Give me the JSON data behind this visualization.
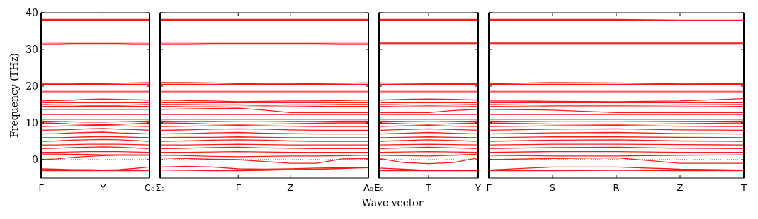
{
  "chart_data": [
    {
      "type": "line",
      "ylabel": "Frequency (THz)",
      "color": "#ff0000",
      "categories": [
        "Γ",
        null,
        null,
        null,
        "Y",
        null,
        null,
        "C₀"
      ],
      "ylim": [
        -5,
        40
      ],
      "yticks": [
        0,
        10,
        20,
        30,
        40
      ],
      "ref_lines": [
        {
          "axis": "y",
          "value": 0,
          "color": "#0000ff",
          "line_style": "dotted"
        }
      ],
      "series": [
        {
          "values": [
            38.2,
            38.2,
            38.2,
            38.2,
            38.2,
            38.2,
            38.2,
            38.2
          ]
        },
        {
          "values": [
            37.8,
            37.8,
            37.8,
            37.8,
            37.8,
            37.8,
            37.8,
            37.8
          ]
        },
        {
          "values": [
            32,
            32,
            32,
            32,
            32,
            32,
            32,
            32
          ]
        },
        {
          "values": [
            31.5,
            31.5,
            31.6,
            31.6,
            31.6,
            31.6,
            31.5,
            31.5
          ]
        },
        {
          "values": [
            20.6,
            20.6,
            20.6,
            20.7,
            20.7,
            20.8,
            20.9,
            21
          ]
        },
        {
          "values": [
            20.5,
            20.5,
            20.5,
            20.5,
            20.5,
            20.5,
            20.5,
            20.5
          ]
        },
        {
          "values": [
            18.9,
            18.9,
            18.9,
            18.9,
            18.9,
            18.9,
            18.9,
            18.9
          ]
        },
        {
          "values": [
            18.5,
            18.5,
            18.5,
            18.5,
            18.5,
            18.5,
            18.5,
            18.5
          ]
        },
        {
          "values": [
            16,
            16.1,
            16.2,
            16.4,
            16.5,
            16.4,
            16.3,
            16.2
          ]
        },
        {
          "values": [
            15.5,
            15.5,
            15.5,
            15.5,
            15.5,
            15.5,
            15.5,
            15.5
          ]
        },
        {
          "values": [
            15,
            14.9,
            14.9,
            14.8,
            14.8,
            14.8,
            14.9,
            15
          ]
        },
        {
          "values": [
            14.5,
            14.5,
            14.5,
            14.5,
            14.5,
            14.5,
            14.5,
            14.5
          ]
        },
        {
          "values": [
            13.7,
            13.7,
            13.7,
            13.7,
            13.7,
            13.7,
            13.7,
            13.7
          ]
        },
        {
          "values": [
            12.3,
            12.3,
            12.3,
            12.3,
            12.3,
            12.3,
            12.3,
            12.3
          ]
        },
        {
          "values": [
            11,
            11,
            11,
            11,
            11,
            11,
            11,
            11
          ]
        },
        {
          "values": [
            10.5,
            10.4,
            10.3,
            10.2,
            10.2,
            10.3,
            10.4,
            10.5
          ]
        },
        {
          "values": [
            10,
            9.9,
            9.7,
            9.6,
            9.5,
            9.6,
            9.8,
            10
          ]
        },
        {
          "values": [
            9,
            9.1,
            9.2,
            9.3,
            9.3,
            9.2,
            9.1,
            9
          ]
        },
        {
          "values": [
            8,
            8.1,
            8.2,
            8.4,
            8.5,
            8.3,
            8.2,
            8
          ]
        },
        {
          "values": [
            7,
            7.1,
            7.3,
            7.4,
            7.5,
            7.3,
            7.2,
            7
          ]
        },
        {
          "values": [
            6,
            6,
            6.1,
            6.2,
            6.3,
            6.2,
            6.1,
            6
          ]
        },
        {
          "values": [
            5,
            5.1,
            5.3,
            5.4,
            5.5,
            5.4,
            5.2,
            5
          ]
        },
        {
          "values": [
            4,
            4,
            4.1,
            4.2,
            4.2,
            4.2,
            4.1,
            4
          ]
        },
        {
          "values": [
            3,
            3.1,
            3.3,
            3.4,
            3.5,
            3.4,
            3.2,
            3
          ]
        },
        {
          "values": [
            2,
            2,
            2.1,
            2.2,
            2.2,
            2.2,
            2.1,
            2
          ]
        },
        {
          "values": [
            1.5,
            1.5,
            1.4,
            1.4,
            1.3,
            1.3,
            1.3,
            1.2
          ]
        },
        {
          "values": [
            0,
            0.2,
            0.6,
            0.9,
            1.1,
            1.2,
            1.2,
            1.3
          ]
        },
        {
          "values": [
            -2.5,
            -2.6,
            -2.7,
            -2.7,
            -2.8,
            -2.7,
            -2.4,
            -2
          ]
        },
        {
          "values": [
            -3,
            -3,
            -3,
            -3,
            -3,
            -3,
            -3,
            -3
          ]
        }
      ]
    },
    {
      "type": "line",
      "color": "#ff0000",
      "tick_labels": "x",
      "categories": [
        "Σ₀",
        null,
        null,
        "Γ",
        null,
        "Z",
        null,
        null,
        "A₀"
      ],
      "ylim": [
        -5,
        40
      ],
      "yticks": [
        0,
        10,
        20,
        30,
        40
      ],
      "ref_lines": [
        {
          "axis": "y",
          "value": 0,
          "color": "#0000ff",
          "line_style": "dotted"
        }
      ],
      "series": [
        {
          "values": [
            38.2,
            38.2,
            38.2,
            38.2,
            38.2,
            38.2,
            38.2,
            38.2,
            38.2
          ]
        },
        {
          "values": [
            37.8,
            37.8,
            37.8,
            37.8,
            37.8,
            37.8,
            37.8,
            37.8,
            37.8
          ]
        },
        {
          "values": [
            32,
            32,
            32,
            32,
            32,
            32,
            32,
            32,
            32
          ]
        },
        {
          "values": [
            31.5,
            31.5,
            31.6,
            31.6,
            31.6,
            31.6,
            31.6,
            31.5,
            31.5
          ]
        },
        {
          "values": [
            21,
            21,
            20.9,
            20.7,
            20.6,
            20.6,
            20.7,
            20.8,
            20.9
          ]
        },
        {
          "values": [
            20.5,
            20.5,
            20.5,
            20.5,
            20.5,
            20.5,
            20.5,
            20.5,
            20.5
          ]
        },
        {
          "values": [
            18.9,
            18.9,
            18.9,
            18.9,
            18.9,
            18.9,
            18.9,
            18.9,
            18.9
          ]
        },
        {
          "values": [
            18.5,
            18.5,
            18.5,
            18.5,
            18.5,
            18.5,
            18.5,
            18.5,
            18.5
          ]
        },
        {
          "values": [
            16.2,
            16.1,
            16,
            15.8,
            15.9,
            16,
            16,
            16.1,
            16.2
          ]
        },
        {
          "values": [
            15.5,
            15.5,
            15.5,
            15.5,
            15.5,
            15.5,
            15.5,
            15.5,
            15.5
          ]
        },
        {
          "values": [
            15,
            15,
            14.9,
            14.9,
            14.8,
            14.9,
            14.9,
            15,
            15
          ]
        },
        {
          "values": [
            14.5,
            14.4,
            14.4,
            14.3,
            14.4,
            14.4,
            14.5,
            14.5,
            14.5
          ]
        },
        {
          "values": [
            13.7,
            13.8,
            13.9,
            14,
            13.5,
            12.8,
            12.8,
            12.8,
            12.8
          ]
        },
        {
          "values": [
            12.3,
            12.3,
            12.3,
            12.3,
            12.3,
            12.3,
            12.3,
            12.3,
            12.3
          ]
        },
        {
          "values": [
            11,
            11,
            11,
            11,
            11,
            11,
            11,
            11,
            11
          ]
        },
        {
          "values": [
            10.5,
            10.4,
            10.4,
            10.3,
            10.3,
            10.4,
            10.4,
            10.5,
            10.5
          ]
        },
        {
          "values": [
            10,
            9.9,
            9.7,
            9.6,
            9.7,
            9.8,
            9.9,
            10,
            10
          ]
        },
        {
          "values": [
            9,
            9.1,
            9.2,
            9.3,
            9.2,
            9.1,
            9,
            9,
            9
          ]
        },
        {
          "values": [
            8,
            8.1,
            8.3,
            8.4,
            8.3,
            8.1,
            8,
            8,
            8
          ]
        },
        {
          "values": [
            7,
            7.1,
            7.3,
            7.4,
            7.2,
            7.1,
            7,
            7,
            7
          ]
        },
        {
          "values": [
            6,
            6.1,
            6.1,
            6.2,
            6.1,
            6,
            6,
            6,
            6
          ]
        },
        {
          "values": [
            5,
            5.1,
            5.3,
            5.4,
            5.3,
            5.1,
            5,
            5,
            5
          ]
        },
        {
          "values": [
            4,
            4,
            4.1,
            4.2,
            4.1,
            4,
            4,
            4,
            4
          ]
        },
        {
          "values": [
            3,
            3.1,
            3.3,
            3.4,
            3.2,
            3.1,
            3,
            3,
            3
          ]
        },
        {
          "values": [
            2,
            2,
            2.1,
            2.2,
            2.1,
            2,
            2,
            2,
            2
          ]
        },
        {
          "values": [
            1.2,
            1.1,
            0.9,
            0.8,
            0.9,
            1,
            1,
            1.1,
            1.2
          ]
        },
        {
          "values": [
            0.5,
            0.3,
            0.1,
            0,
            -0.5,
            -1,
            -1,
            0.2,
            0.3
          ]
        },
        {
          "values": [
            -2,
            -1.8,
            -2,
            -2.5,
            -2.6,
            -2.5,
            -2.3,
            -2.2,
            -2.1
          ]
        },
        {
          "values": [
            -2.8,
            -2.9,
            -3,
            -3,
            -2.9,
            -2.7,
            -2.6,
            -2.4,
            -2.2
          ]
        }
      ]
    },
    {
      "type": "line",
      "xlabel": "Wave vector",
      "color": "#ff0000",
      "tick_labels": "x",
      "categories": [
        "E₀",
        null,
        "T",
        null,
        "Y"
      ],
      "ylim": [
        -5,
        40
      ],
      "yticks": [
        0,
        10,
        20,
        30,
        40
      ],
      "ref_lines": [
        {
          "axis": "y",
          "value": 0,
          "color": "#0000ff",
          "line_style": "dotted"
        }
      ],
      "series": [
        {
          "values": [
            38.2,
            38.2,
            38.2,
            38.2,
            38.2
          ]
        },
        {
          "values": [
            37.8,
            37.8,
            37.8,
            37.8,
            37.8
          ]
        },
        {
          "values": [
            31.9,
            31.9,
            31.9,
            31.9,
            31.9
          ]
        },
        {
          "values": [
            31.6,
            31.6,
            31.6,
            31.6,
            31.6
          ]
        },
        {
          "values": [
            20.9,
            20.8,
            20.7,
            20.7,
            20.7
          ]
        },
        {
          "values": [
            20.5,
            20.5,
            20.5,
            20.5,
            20.5
          ]
        },
        {
          "values": [
            18.9,
            18.9,
            18.9,
            18.9,
            18.9
          ]
        },
        {
          "values": [
            18.5,
            18.5,
            18.5,
            18.5,
            18.5
          ]
        },
        {
          "values": [
            16.2,
            16.4,
            16.5,
            16.4,
            16.2
          ]
        },
        {
          "values": [
            15.5,
            15.5,
            15.5,
            15.5,
            15.5
          ]
        },
        {
          "values": [
            15,
            14.9,
            14.8,
            14.9,
            15
          ]
        },
        {
          "values": [
            14.5,
            14.4,
            14.4,
            14.4,
            14.5
          ]
        },
        {
          "values": [
            12.8,
            12.8,
            12.8,
            13.4,
            13.7
          ]
        },
        {
          "values": [
            12.3,
            12.3,
            12.3,
            12.3,
            12.3
          ]
        },
        {
          "values": [
            11,
            11,
            11,
            11,
            11
          ]
        },
        {
          "values": [
            10.5,
            10.4,
            10.3,
            10.4,
            10.5
          ]
        },
        {
          "values": [
            10,
            9.8,
            9.6,
            9.8,
            10
          ]
        },
        {
          "values": [
            9,
            9.2,
            9.3,
            9.1,
            9
          ]
        },
        {
          "values": [
            8,
            8.2,
            8.4,
            8.2,
            8
          ]
        },
        {
          "values": [
            7,
            7.2,
            7.4,
            7.2,
            7
          ]
        },
        {
          "values": [
            6,
            6.1,
            6.2,
            6.1,
            6
          ]
        },
        {
          "values": [
            5,
            5.2,
            5.4,
            5.2,
            5
          ]
        },
        {
          "values": [
            4,
            4.1,
            4.2,
            4.1,
            4
          ]
        },
        {
          "values": [
            3,
            3.2,
            3.4,
            3.2,
            3
          ]
        },
        {
          "values": [
            2,
            2.1,
            2.2,
            2.1,
            2
          ]
        },
        {
          "values": [
            1.2,
            1.1,
            1,
            1.2,
            1.5
          ]
        },
        {
          "values": [
            0.3,
            -0.8,
            -1.1,
            -0.8,
            0.5
          ]
        },
        {
          "values": [
            -2.3,
            -2.6,
            -2.9,
            -2.9,
            -3
          ]
        },
        {
          "values": [
            -3,
            -3,
            -3,
            -3,
            -3
          ]
        }
      ]
    },
    {
      "type": "line",
      "color": "#ff0000",
      "tick_labels": "x",
      "categories": [
        "Γ",
        "S",
        "R",
        "Z",
        "T"
      ],
      "ylim": [
        -5,
        40
      ],
      "yticks": [
        0,
        10,
        20,
        30,
        40
      ],
      "ref_lines": [
        {
          "axis": "y",
          "value": 0,
          "color": "#0000ff",
          "line_style": "dotted"
        }
      ],
      "series": [
        {
          "values": [
            38.2,
            38.2,
            38.2,
            38,
            38
          ]
        },
        {
          "values": [
            37.8,
            37.8,
            37.8,
            37.8,
            37.8
          ]
        },
        {
          "values": [
            31.9,
            31.9,
            31.9,
            31.9,
            31.9
          ]
        },
        {
          "values": [
            31.6,
            31.6,
            31.6,
            31.6,
            31.6
          ]
        },
        {
          "values": [
            20.6,
            21,
            20.9,
            20.6,
            20.7
          ]
        },
        {
          "values": [
            20.5,
            20.5,
            20.5,
            20.5,
            20.5
          ]
        },
        {
          "values": [
            18.9,
            18.9,
            18.9,
            18.9,
            18.9
          ]
        },
        {
          "values": [
            18.5,
            18.5,
            18.5,
            18.5,
            18.5
          ]
        },
        {
          "values": [
            16,
            15.9,
            15.8,
            16,
            16.6
          ]
        },
        {
          "values": [
            15.5,
            15.5,
            15.5,
            15.5,
            15.5
          ]
        },
        {
          "values": [
            15,
            14.8,
            14.8,
            14.9,
            15
          ]
        },
        {
          "values": [
            14.5,
            14.4,
            14.4,
            14.4,
            14.5
          ]
        },
        {
          "values": [
            13.7,
            13.5,
            12.8,
            12.8,
            12.8
          ]
        },
        {
          "values": [
            12.3,
            12.3,
            12.3,
            12.3,
            12.3
          ]
        },
        {
          "values": [
            11,
            11,
            11,
            11,
            11
          ]
        },
        {
          "values": [
            10.5,
            10.3,
            10.3,
            10.4,
            10.5
          ]
        },
        {
          "values": [
            10,
            9.7,
            9.6,
            9.8,
            10
          ]
        },
        {
          "values": [
            9,
            9.2,
            9.3,
            9.1,
            9
          ]
        },
        {
          "values": [
            8,
            8.3,
            8.4,
            8.1,
            8
          ]
        },
        {
          "values": [
            7,
            7.3,
            7.4,
            7.1,
            7
          ]
        },
        {
          "values": [
            6,
            6.2,
            6.2,
            6.1,
            6
          ]
        },
        {
          "values": [
            5,
            5.3,
            5.4,
            5.1,
            5
          ]
        },
        {
          "values": [
            4,
            4.2,
            4.2,
            4.1,
            4
          ]
        },
        {
          "values": [
            3,
            3.3,
            3.4,
            3.1,
            3
          ]
        },
        {
          "values": [
            2,
            2.2,
            2.2,
            2,
            2
          ]
        },
        {
          "values": [
            1.2,
            1,
            1,
            1.2,
            1.3
          ]
        },
        {
          "values": [
            0,
            0.3,
            0.5,
            -1,
            -1
          ]
        },
        {
          "values": [
            -2.8,
            -2,
            -2,
            -2.6,
            -2.8
          ]
        },
        {
          "values": [
            -3,
            -3,
            -2.9,
            -3,
            -3
          ]
        }
      ]
    }
  ]
}
